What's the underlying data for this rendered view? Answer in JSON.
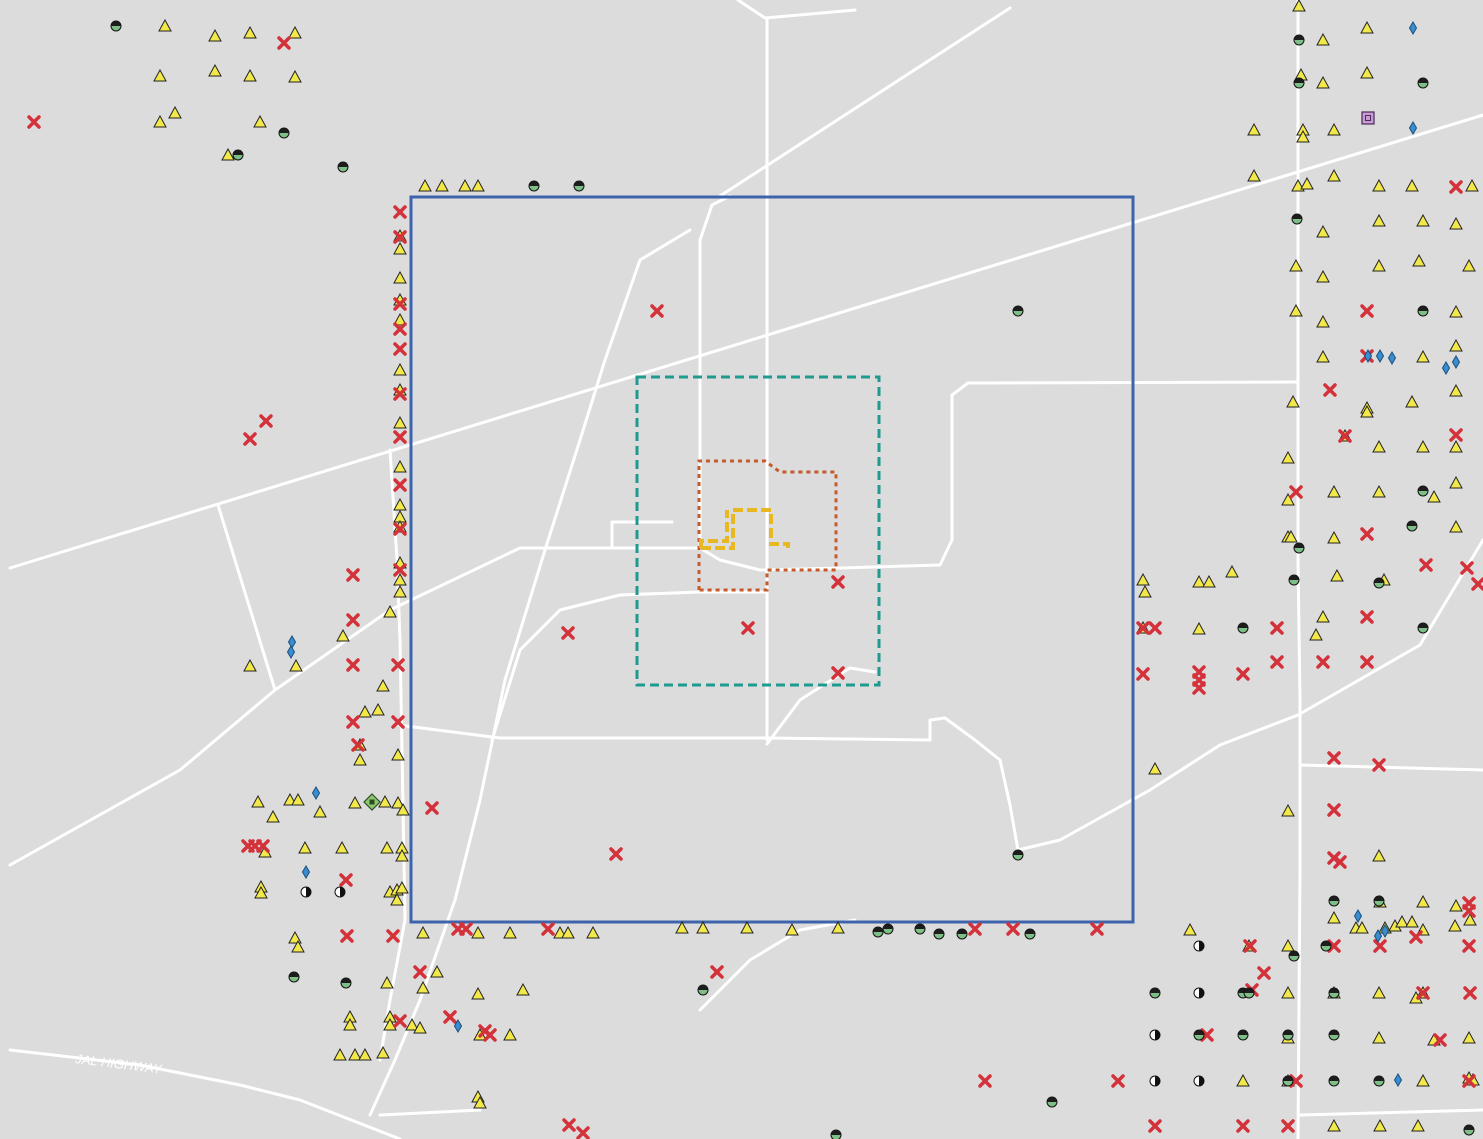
{
  "map": {
    "background_color": "#dcdcdd",
    "road_color": "#ffffff",
    "road_label": "JAL HIGHWAY",
    "boundaries": [
      {
        "name": "outer-boundary",
        "color": "#3d63ad",
        "style": "solid"
      },
      {
        "name": "middle-boundary",
        "color": "#1f9a8e",
        "style": "dashed"
      },
      {
        "name": "inner-boundary",
        "color": "#c55a2a",
        "style": "dotted"
      },
      {
        "name": "site-boundary",
        "color": "#e8b820",
        "style": "dashed"
      }
    ],
    "symbols": {
      "triangle": {
        "icon": "triangle-icon",
        "fill": "#f2e84a",
        "stroke": "#222222"
      },
      "cross": {
        "icon": "red-x-icon",
        "fill": "#d4323a"
      },
      "half_circle": {
        "icon": "half-circle-icon",
        "top": "#1d1d1d",
        "bottom": "#7dbf86"
      },
      "diamond": {
        "icon": "diamond-icon",
        "fill": "#3a8dd0"
      },
      "half_white_circle": {
        "icon": "half-white-circle-icon"
      },
      "square": {
        "icon": "square-icon",
        "fill": "#c89ad6"
      },
      "green_diamond": {
        "icon": "green-diamond-icon",
        "fill": "#8cc66e"
      }
    }
  }
}
